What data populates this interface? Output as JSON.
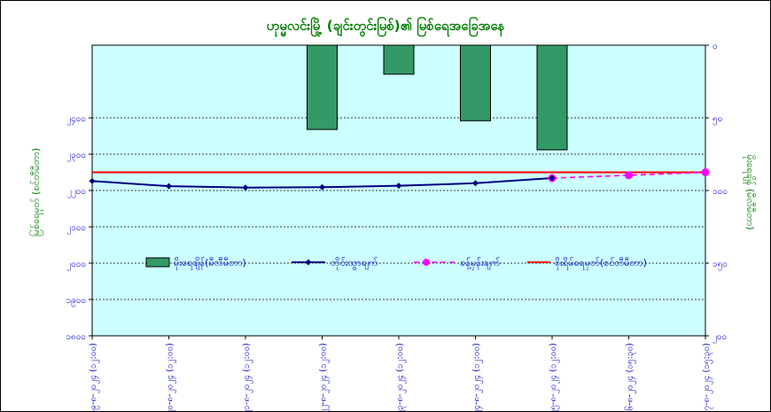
{
  "chart_data": {
    "type": "bar+line",
    "title": "ဟုမ္မလင်းမြို့ (ချင်းတွင်းမြစ်)၏ မြစ်ရေအခြေအနေ",
    "ylabel_left": "မြစ်ရေမှတ် (စင်တီမီတာ)",
    "ylabel_right": "မိုးရေချိန် (မီလီမီတာ)",
    "ylim_left": [
      1800,
      2600
    ],
    "ylim_right": [
      200,
      0
    ],
    "left_ticks_values": [
      1800,
      1900,
      2000,
      2100,
      2200,
      2300,
      2400
    ],
    "left_tick_labels": [
      "၁၈၀၀",
      "၁၉၀၀",
      "၂၀၀၀",
      "၂၁၀၀",
      "၂၂၀၀",
      "၂၃၀၀",
      "၂၄၀၀"
    ],
    "right_ticks_values": [
      200,
      150,
      100,
      50,
      0
    ],
    "right_tick_labels": [
      "၂၀၀",
      "၁၅၀",
      "၁၀၀",
      "၅၀",
      "၀"
    ],
    "categories": [
      "၁၉-၈-၂၀၂၄ (၁၂:၀၀)",
      "၂၀-၈-၂၀၂၄ (၁၂:၀၀)",
      "၂၁-၈-၂၀၂၄ (၁၂:၀၀)",
      "၂၂-၈-၂၀၂၄ (၁၂:၀၀)",
      "၂၃-၈-၂၀၂၄ (၁၂:၀၀)",
      "၂၄-၈-၂၀၂၄ (၁၂:၀၀)",
      "၂၅-၈-၂၀၂၄ (၁၂:၀၀)",
      "၂၆-၈-၂၀၂၄ (၁၅:၃၀)",
      "၂၇-၈-၂၀၂၄ (၁၅:၃၀)"
    ],
    "grid": true,
    "legend_position": "bottom-center",
    "colors": {
      "plot_bg": "#CCFFFF",
      "bar": "#339966",
      "observed": "#000080",
      "forecast": "#FF00FF",
      "danger": "#FF0000",
      "title": "#008000",
      "axis_text": "#0000CC",
      "axis_title": "#008000"
    },
    "series": [
      {
        "name": "မိုးရေချိန်(မီလီမီတာ)",
        "type": "bar",
        "axis": "right",
        "values": [
          null,
          null,
          null,
          58,
          20,
          52,
          72,
          null,
          null
        ]
      },
      {
        "name": "တိုင်းထွာချက်",
        "type": "line",
        "axis": "left",
        "values": [
          2226,
          2212,
          2208,
          2209,
          2213,
          2220,
          2234,
          null,
          null
        ]
      },
      {
        "name": "ခန့်မှန်းချက်",
        "type": "line",
        "style": "dashed",
        "axis": "left",
        "values": [
          null,
          null,
          null,
          null,
          null,
          null,
          2234,
          2242,
          2250
        ]
      },
      {
        "name": "စိုးရိမ်ရေမှတ်(စင်တီမီတာ)",
        "type": "line",
        "axis": "left",
        "values": [
          2250,
          2250,
          2250,
          2250,
          2250,
          2250,
          2250,
          2250,
          2250
        ]
      }
    ]
  }
}
